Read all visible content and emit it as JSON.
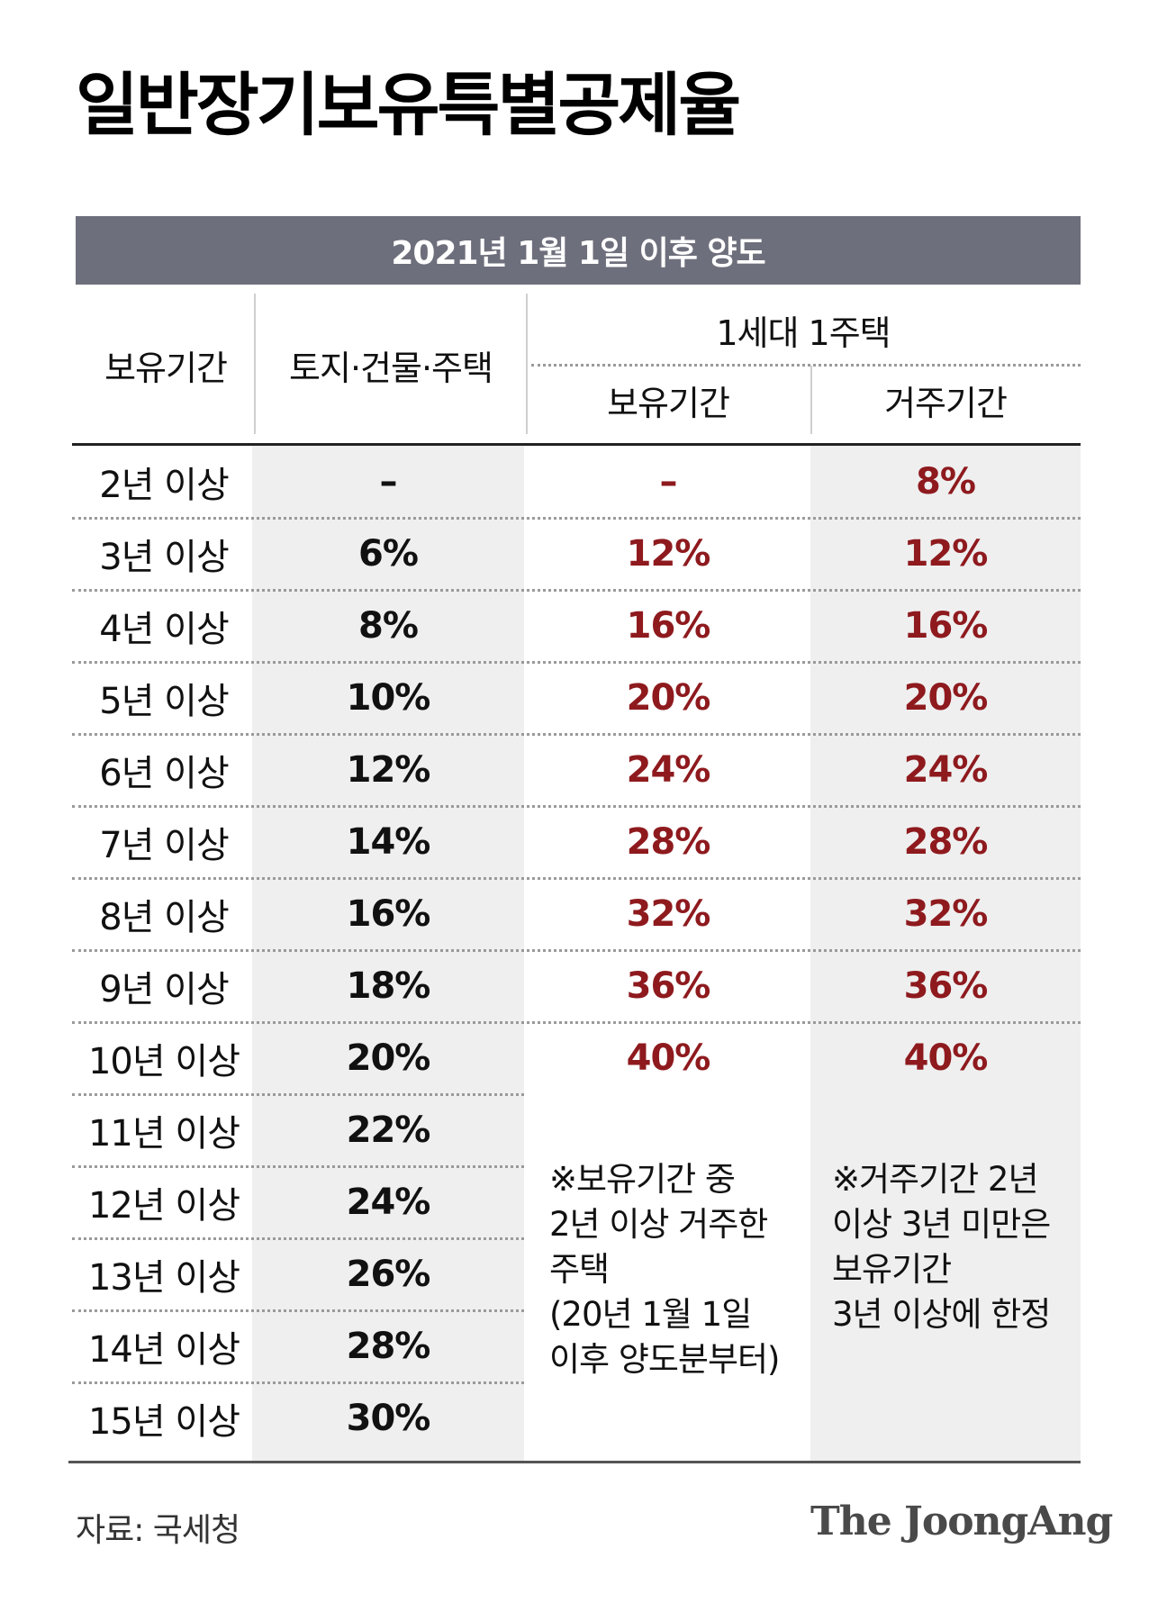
{
  "title": "일반장기보유특별공제율",
  "banner": "2021년 1월 1일 이후 양도",
  "headers": {
    "period": "보유기간",
    "land": "토지·건물·주택",
    "one_house": "1세대 1주택",
    "holding": "보유기간",
    "residence": "거주기간"
  },
  "rows": [
    {
      "period": "2년 이상",
      "land": "–",
      "holding": "–",
      "residence": "8%"
    },
    {
      "period": "3년 이상",
      "land": "6%",
      "holding": "12%",
      "residence": "12%"
    },
    {
      "period": "4년 이상",
      "land": "8%",
      "holding": "16%",
      "residence": "16%"
    },
    {
      "period": "5년 이상",
      "land": "10%",
      "holding": "20%",
      "residence": "20%"
    },
    {
      "period": "6년 이상",
      "land": "12%",
      "holding": "24%",
      "residence": "24%"
    },
    {
      "period": "7년 이상",
      "land": "14%",
      "holding": "28%",
      "residence": "28%"
    },
    {
      "period": "8년 이상",
      "land": "16%",
      "holding": "32%",
      "residence": "32%"
    },
    {
      "period": "9년 이상",
      "land": "18%",
      "holding": "36%",
      "residence": "36%"
    },
    {
      "period": "10년 이상",
      "land": "20%",
      "holding": "40%",
      "residence": "40%"
    },
    {
      "period": "11년 이상",
      "land": "22%"
    },
    {
      "period": "12년 이상",
      "land": "24%"
    },
    {
      "period": "13년 이상",
      "land": "26%"
    },
    {
      "period": "14년 이상",
      "land": "28%"
    },
    {
      "period": "15년 이상",
      "land": "30%"
    }
  ],
  "notes": {
    "holding": [
      "※보유기간 중",
      "2년 이상 거주한",
      "주택",
      "(20년 1월 1일",
      "이후 양도분부터)"
    ],
    "residence": [
      "※거주기간 2년",
      "이상 3년 미만은",
      "보유기간",
      "3년 이상에 한정"
    ]
  },
  "source": "자료: 국세청",
  "logo": "The JoongAng",
  "colors": {
    "banner": "#6e6f7c",
    "accent_red": "#8e1a1e",
    "cell_bg": "#efefef"
  }
}
